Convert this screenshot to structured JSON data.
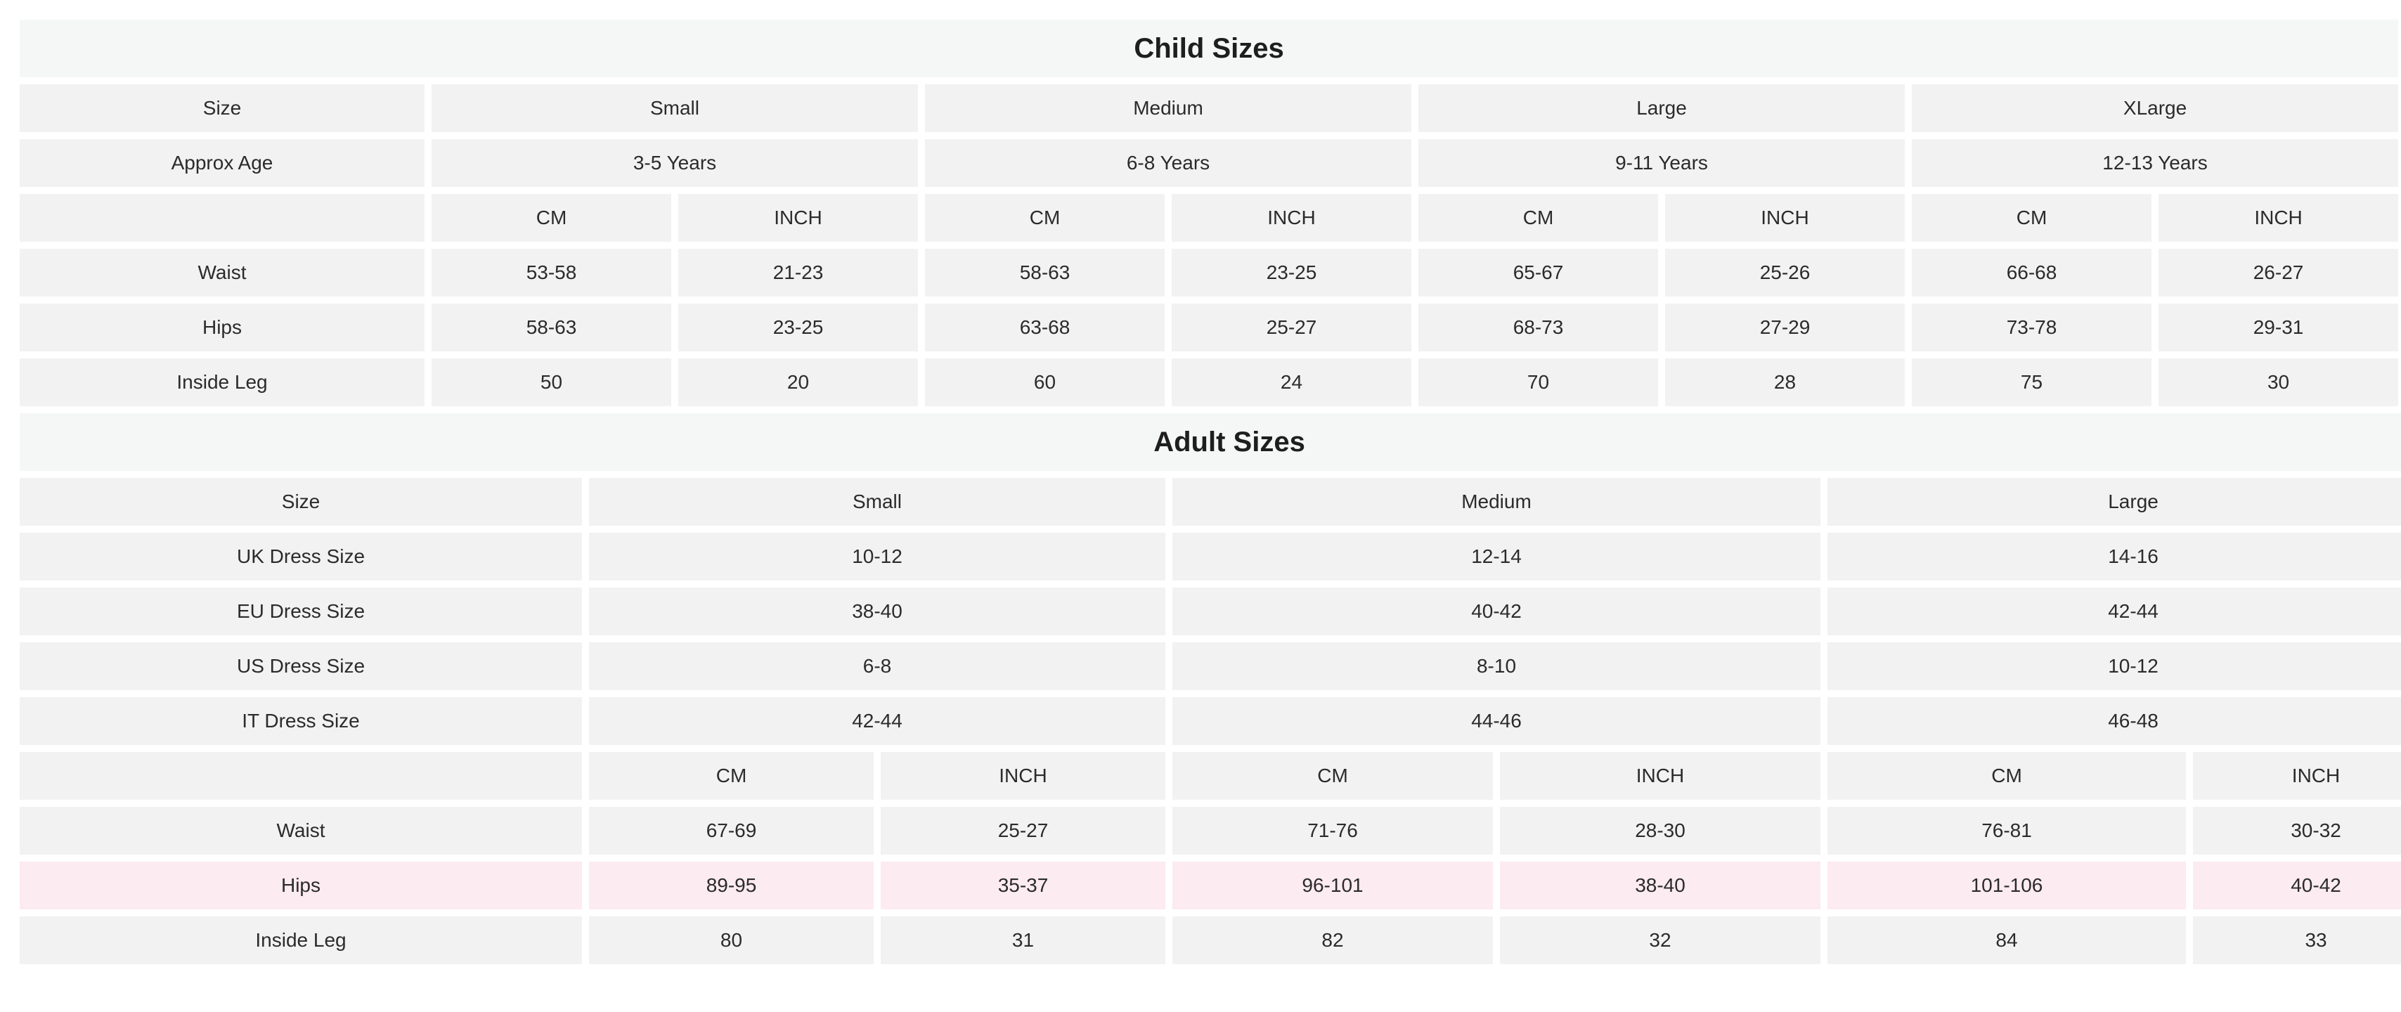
{
  "child": {
    "title": "Child Sizes",
    "size_label": "Size",
    "sizes": [
      "Small",
      "Medium",
      "Large",
      "XLarge"
    ],
    "age_label": "Approx Age",
    "ages": [
      "3-5 Years",
      "6-8 Years",
      "9-11 Years",
      "12-13 Years"
    ],
    "unit_cm": "CM",
    "unit_inch": "INCH",
    "rows": [
      {
        "label": "Waist",
        "values": [
          "53-58",
          "21-23",
          "58-63",
          "23-25",
          "65-67",
          "25-26",
          "66-68",
          "26-27"
        ]
      },
      {
        "label": "Hips",
        "values": [
          "58-63",
          "23-25",
          "63-68",
          "25-27",
          "68-73",
          "27-29",
          "73-78",
          "29-31"
        ]
      },
      {
        "label": "Inside Leg",
        "values": [
          "50",
          "20",
          "60",
          "24",
          "70",
          "28",
          "75",
          "30"
        ]
      }
    ]
  },
  "adult": {
    "title": "Adult Sizes",
    "size_label": "Size",
    "sizes": [
      "Small",
      "Medium",
      "Large"
    ],
    "dress_rows": [
      {
        "label": "UK Dress Size",
        "values": [
          "10-12",
          "12-14",
          "14-16"
        ]
      },
      {
        "label": "EU Dress Size",
        "values": [
          "38-40",
          "40-42",
          "42-44"
        ]
      },
      {
        "label": "US Dress Size",
        "values": [
          "6-8",
          "8-10",
          "10-12"
        ]
      },
      {
        "label": "IT Dress Size",
        "values": [
          "42-44",
          "44-46",
          "46-48"
        ]
      }
    ],
    "unit_cm": "CM",
    "unit_inch": "INCH",
    "rows": [
      {
        "label": "Waist",
        "values": [
          "67-69",
          "25-27",
          "71-76",
          "28-30",
          "76-81",
          "30-32"
        ]
      },
      {
        "label": "Hips",
        "values": [
          "89-95",
          "35-37",
          "96-101",
          "38-40",
          "101-106",
          "40-42"
        ]
      },
      {
        "label": "Inside Leg",
        "values": [
          "80",
          "31",
          "82",
          "32",
          "84",
          "33"
        ]
      }
    ]
  },
  "colors": {
    "cell_background": "#f2f2f2",
    "title_background": "#f5f7f6",
    "highlight_row": "#fcebf0"
  }
}
